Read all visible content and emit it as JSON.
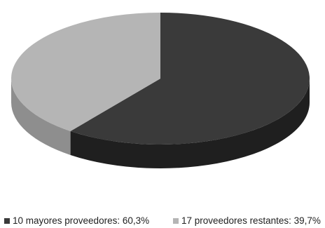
{
  "chart_data": {
    "type": "pie",
    "style": "3d",
    "legend_position": "bottom",
    "slices": [
      {
        "label": "10 mayores proveedores: 60,3%",
        "value": 60.3,
        "color": "#3a3a3a",
        "side_color": "#1f1f1f"
      },
      {
        "label": "17 proveedores restantes: 39,7%",
        "value": 39.7,
        "color": "#b5b5b5",
        "side_color": "#8e8e8e"
      }
    ]
  }
}
